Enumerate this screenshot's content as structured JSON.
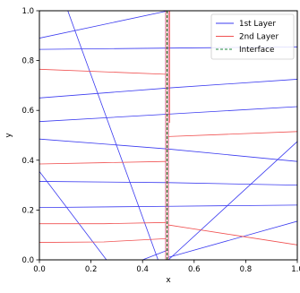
{
  "chart_data": {
    "type": "line",
    "title": "",
    "xlabel": "x",
    "ylabel": "y",
    "xlim": [
      0.0,
      1.0
    ],
    "ylim": [
      0.0,
      1.0
    ],
    "xticks": [
      "0.0",
      "0.2",
      "0.4",
      "0.6",
      "0.8",
      "1.0"
    ],
    "yticks": [
      "0.0",
      "0.2",
      "0.4",
      "0.6",
      "0.8",
      "1.0"
    ],
    "grid": false,
    "legend_position": "upper right",
    "legend": [
      {
        "name": "1st Layer",
        "color": "#3b3bf0",
        "style": "solid"
      },
      {
        "name": "2nd Layer",
        "color": "#f05050",
        "style": "solid"
      },
      {
        "name": "Interface",
        "color": "#1f8a3c",
        "style": "dashed"
      }
    ],
    "series": [
      {
        "group": "1st Layer",
        "color": "#3b3bf0",
        "x": [
          0.0,
          0.5
        ],
        "y": [
          0.89,
          1.0
        ]
      },
      {
        "group": "1st Layer",
        "color": "#3b3bf0",
        "x": [
          0.0,
          0.5,
          1.0
        ],
        "y": [
          0.845,
          0.85,
          0.855
        ]
      },
      {
        "group": "1st Layer",
        "color": "#3b3bf0",
        "x": [
          0.0,
          0.5,
          1.0
        ],
        "y": [
          0.65,
          0.69,
          0.725
        ]
      },
      {
        "group": "1st Layer",
        "color": "#3b3bf0",
        "x": [
          0.0,
          0.5,
          1.0
        ],
        "y": [
          0.555,
          0.585,
          0.615
        ]
      },
      {
        "group": "1st Layer",
        "color": "#3b3bf0",
        "x": [
          0.0,
          0.5,
          1.0
        ],
        "y": [
          0.485,
          0.445,
          0.395
        ]
      },
      {
        "group": "1st Layer",
        "color": "#3b3bf0",
        "x": [
          0.0,
          0.5,
          1.0
        ],
        "y": [
          0.315,
          0.31,
          0.3
        ]
      },
      {
        "group": "1st Layer",
        "color": "#3b3bf0",
        "x": [
          0.0,
          0.5,
          1.0
        ],
        "y": [
          0.21,
          0.215,
          0.22
        ]
      },
      {
        "group": "1st Layer",
        "color": "#3b3bf0",
        "x": [
          0.11,
          0.46
        ],
        "y": [
          1.0,
          0.0
        ]
      },
      {
        "group": "1st Layer",
        "color": "#3b3bf0",
        "x": [
          0.0,
          0.26
        ],
        "y": [
          0.355,
          0.0
        ]
      },
      {
        "group": "1st Layer",
        "color": "#3b3bf0",
        "x": [
          0.4,
          0.5
        ],
        "y": [
          0.0,
          0.04
        ]
      },
      {
        "group": "1st Layer",
        "color": "#3b3bf0",
        "x": [
          0.5,
          1.0
        ],
        "y": [
          0.0,
          0.475
        ]
      },
      {
        "group": "1st Layer",
        "color": "#3b3bf0",
        "x": [
          0.5,
          1.0
        ],
        "y": [
          0.01,
          0.155
        ]
      },
      {
        "group": "1st Layer",
        "color": "#3b3bf0",
        "x": [
          0.49,
          0.49
        ],
        "y": [
          0.0,
          1.0
        ]
      },
      {
        "group": "1st Layer",
        "color": "#3b3bf0",
        "x": [
          0.5,
          0.5
        ],
        "y": [
          0.0,
          1.0
        ]
      },
      {
        "group": "2nd Layer",
        "color": "#f05050",
        "x": [
          0.0,
          0.25,
          0.49
        ],
        "y": [
          0.765,
          0.755,
          0.745
        ]
      },
      {
        "group": "2nd Layer",
        "color": "#f05050",
        "x": [
          0.0,
          0.25,
          0.49
        ],
        "y": [
          0.385,
          0.39,
          0.395
        ]
      },
      {
        "group": "2nd Layer",
        "color": "#f05050",
        "x": [
          0.5,
          0.75,
          1.0
        ],
        "y": [
          0.495,
          0.505,
          0.515
        ]
      },
      {
        "group": "2nd Layer",
        "color": "#f05050",
        "x": [
          0.0,
          0.25,
          0.49
        ],
        "y": [
          0.145,
          0.145,
          0.15
        ]
      },
      {
        "group": "2nd Layer",
        "color": "#f05050",
        "x": [
          0.0,
          0.25,
          0.49
        ],
        "y": [
          0.07,
          0.072,
          0.085
        ]
      },
      {
        "group": "2nd Layer",
        "color": "#f05050",
        "x": [
          0.5,
          0.75,
          1.0
        ],
        "y": [
          0.14,
          0.1,
          0.06
        ]
      },
      {
        "group": "2nd Layer",
        "color": "#f05050",
        "x": [
          0.49,
          0.49
        ],
        "y": [
          0.0,
          1.0
        ]
      },
      {
        "group": "2nd Layer",
        "color": "#f05050",
        "x": [
          0.5,
          0.5
        ],
        "y": [
          0.0,
          1.0
        ]
      },
      {
        "group": "2nd Layer",
        "color": "#f05050",
        "x": [
          0.505,
          0.505
        ],
        "y": [
          0.55,
          1.0
        ]
      },
      {
        "group": "Interface",
        "color": "#1f8a3c",
        "style": "dashed",
        "x": [
          0.495,
          0.495
        ],
        "y": [
          0.0,
          1.0
        ]
      }
    ]
  }
}
